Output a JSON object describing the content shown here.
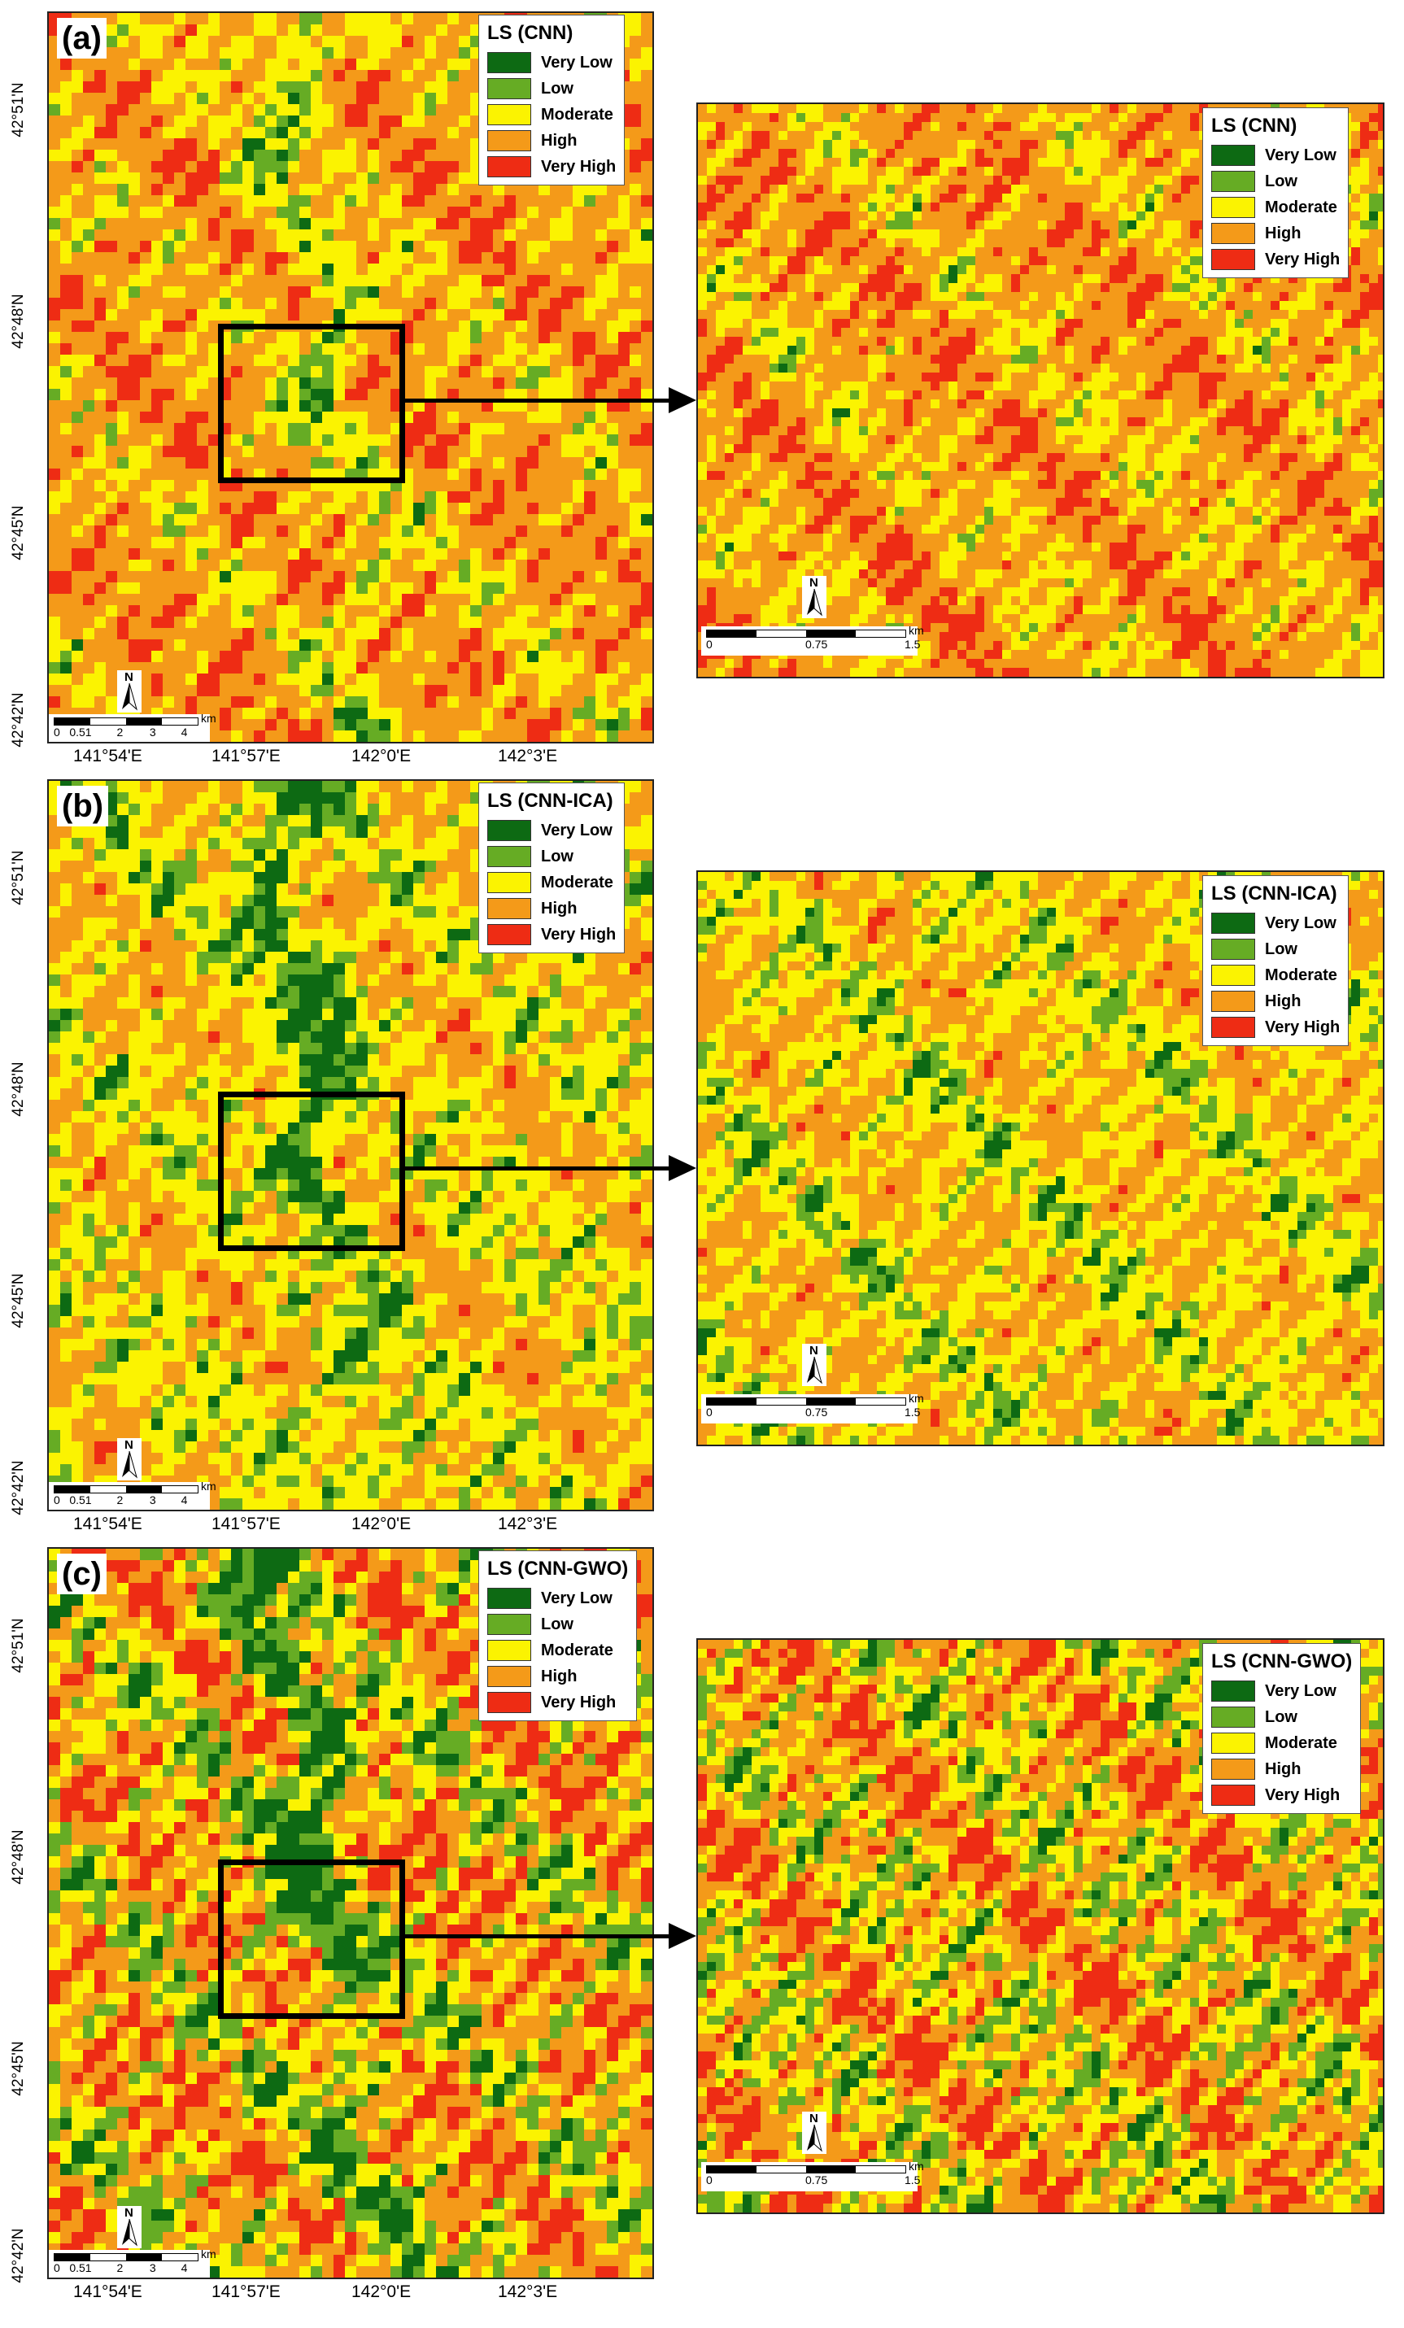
{
  "legend_classes": [
    {
      "label": "Very Low",
      "color": "#0d6a13"
    },
    {
      "label": "Low",
      "color": "#66ac24"
    },
    {
      "label": "Moderate",
      "color": "#fbf301"
    },
    {
      "label": "High",
      "color": "#f49a19"
    },
    {
      "label": "Very High",
      "color": "#ee2c14"
    }
  ],
  "lat_labels": [
    "42°51'N",
    "42°48'N",
    "42°45'N",
    "42°42'N"
  ],
  "lon_labels": [
    "141°54'E",
    "141°57'E",
    "142°0'E",
    "142°3'E"
  ],
  "main_scale": {
    "unit": "km",
    "ticks": [
      "0",
      "0.5",
      "1",
      "2",
      "3",
      "4"
    ]
  },
  "zoom_scale": {
    "unit": "km",
    "ticks": [
      "0",
      "0.75",
      "1.5"
    ]
  },
  "north_label": "N",
  "panels": [
    {
      "label": "(a)",
      "legend_title": "LS (CNN)",
      "class_share": [
        0.07,
        0.12,
        0.21,
        0.27,
        0.33
      ]
    },
    {
      "label": "(b)",
      "legend_title": "LS (CNN-ICA)",
      "class_share": [
        0.2,
        0.12,
        0.22,
        0.31,
        0.15
      ]
    },
    {
      "label": "(c)",
      "legend_title": "LS (CNN-GWO)",
      "class_share": [
        0.22,
        0.13,
        0.13,
        0.18,
        0.34
      ]
    }
  ]
}
